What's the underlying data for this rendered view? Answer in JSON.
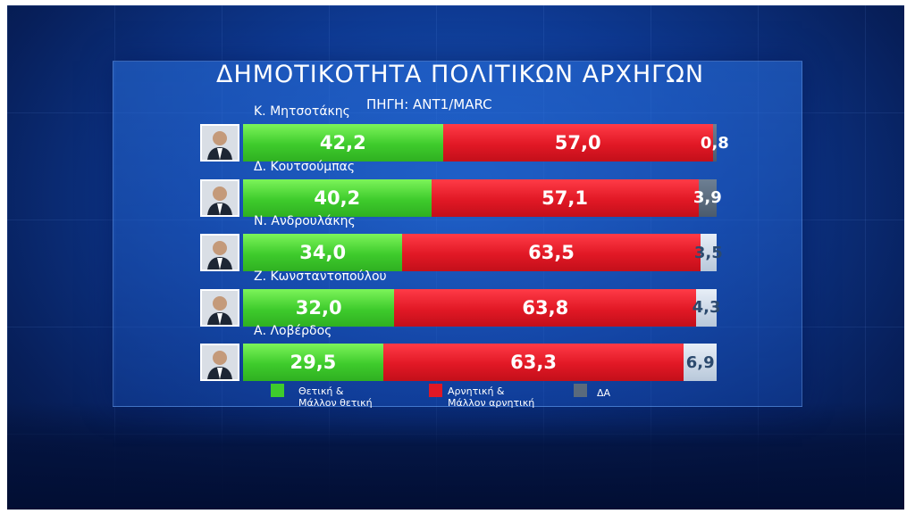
{
  "chart_data": {
    "type": "bar",
    "stacked": true,
    "orientation": "horizontal",
    "title": "ΔΗΜΟΤΙΚΟΤΗΤΑ ΠΟΛΙΤΙΚΩΝ ΑΡΧΗΓΩΝ",
    "subtitle": "ΠΗΓΗ: ANT1/MARC",
    "categories": [
      "Κ. Μητσοτάκης",
      "Δ. Κουτσούμπας",
      "Ν. Ανδρουλάκης",
      "Ζ. Κωνσταντοπούλου",
      "Α. Λοβέρδος"
    ],
    "series": [
      {
        "name": "Θετική & Μάλλον θετική",
        "color": "#3ecb2c",
        "values": [
          42.2,
          40.2,
          34.0,
          32.0,
          29.5
        ],
        "labels": [
          "42,2",
          "40,2",
          "34,0",
          "32,0",
          "29,5"
        ]
      },
      {
        "name": "Αρνητική & Μάλλον αρνητική",
        "color": "#e11825",
        "values": [
          57.0,
          57.1,
          63.5,
          63.8,
          63.3
        ],
        "labels": [
          "57,0",
          "57,1",
          "63,5",
          "63,8",
          "63,3"
        ]
      },
      {
        "name": "ΔΑ",
        "color": "#5a6a7c",
        "values": [
          0.8,
          3.9,
          3.5,
          4.3,
          6.9
        ],
        "labels": [
          "0,8",
          "3,9",
          "3,5",
          "4,3",
          "6,9"
        ]
      }
    ],
    "legend_placement": "bottom",
    "grid": false
  },
  "legend": {
    "pos_line1": "Θετική &",
    "pos_line2": "Μάλλον θετική",
    "neg_line1": "Αρνητική &",
    "neg_line2": "Μάλλον αρνητική",
    "dk": "ΔΑ"
  },
  "colors": {
    "positive": "#3ecb2c",
    "negative": "#e11825",
    "dont_know": "#5a6a7c",
    "background": "#0e3a93"
  },
  "icons": [
    "person-photo-icon"
  ]
}
